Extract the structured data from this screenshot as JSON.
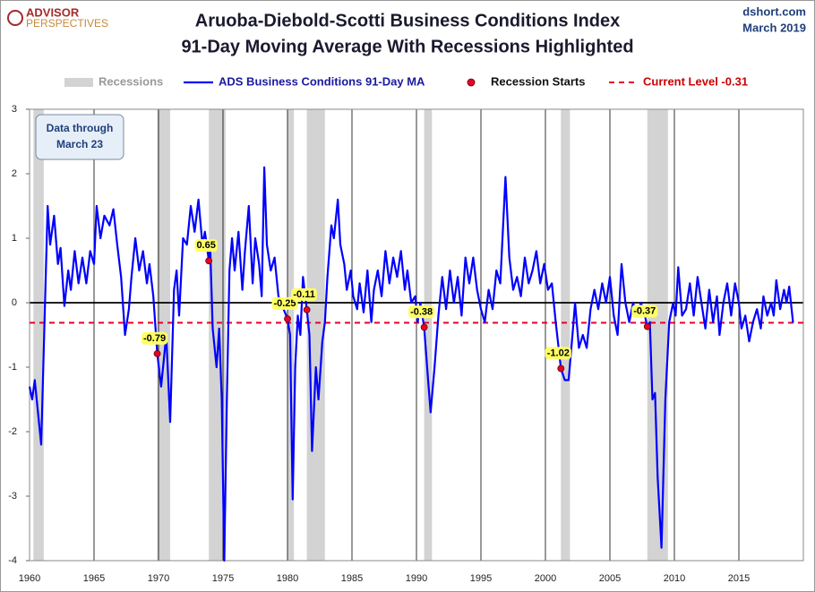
{
  "logo": {
    "top": "ADVISOR",
    "bottom": "PERSPECTIVES"
  },
  "source": {
    "site": "dshort.com",
    "date": "March 2019"
  },
  "chart_data": {
    "type": "line",
    "title": "Aruoba-Diebold-Scotti Business Conditions Index",
    "subtitle": "91-Day Moving Average With Recessions Highlighted",
    "annotation": {
      "line1": "Data through",
      "line2": "March 23"
    },
    "xlim": [
      1960,
      2020
    ],
    "xticks": [
      1960,
      1965,
      1970,
      1975,
      1980,
      1985,
      1990,
      1995,
      2000,
      2005,
      2010,
      2015
    ],
    "ylim": [
      -4,
      3
    ],
    "yticks": [
      -4,
      -3,
      -2,
      -1,
      0,
      1,
      2,
      3
    ],
    "grid": true,
    "recessions": {
      "name": "Recessions",
      "color": "#d3d3d3",
      "spans": [
        [
          1960.3,
          1961.1
        ],
        [
          1969.9,
          1970.9
        ],
        [
          1973.9,
          1975.2
        ],
        [
          1980.0,
          1980.5
        ],
        [
          1981.5,
          1982.9
        ],
        [
          1990.6,
          1991.2
        ],
        [
          2001.2,
          2001.9
        ],
        [
          2007.9,
          2009.5
        ]
      ]
    },
    "series": [
      {
        "name": "ADS Business Conditions 91-Day MA",
        "color": "#0000ff",
        "x": [
          1960.0,
          1960.2,
          1960.4,
          1960.9,
          1961.4,
          1961.6,
          1961.9,
          1962.2,
          1962.4,
          1962.7,
          1963.0,
          1963.2,
          1963.5,
          1963.8,
          1964.1,
          1964.4,
          1964.7,
          1965.0,
          1965.2,
          1965.5,
          1965.8,
          1966.2,
          1966.5,
          1966.8,
          1967.1,
          1967.4,
          1967.7,
          1967.9,
          1968.2,
          1968.5,
          1968.8,
          1969.1,
          1969.3,
          1969.6,
          1969.9,
          1970.2,
          1970.4,
          1970.6,
          1970.9,
          1971.2,
          1971.4,
          1971.6,
          1971.9,
          1972.2,
          1972.5,
          1972.8,
          1973.1,
          1973.4,
          1973.6,
          1973.9,
          1974.0,
          1974.2,
          1974.5,
          1974.7,
          1974.9,
          1975.1,
          1975.3,
          1975.5,
          1975.7,
          1975.9,
          1976.2,
          1976.5,
          1976.7,
          1977.0,
          1977.3,
          1977.5,
          1977.8,
          1978.0,
          1978.2,
          1978.4,
          1978.7,
          1979.0,
          1979.3,
          1979.6,
          1980.0,
          1980.2,
          1980.4,
          1980.6,
          1980.8,
          1981.0,
          1981.2,
          1981.5,
          1981.7,
          1981.9,
          1982.2,
          1982.4,
          1982.7,
          1982.9,
          1983.1,
          1983.4,
          1983.6,
          1983.9,
          1984.1,
          1984.4,
          1984.6,
          1984.9,
          1985.1,
          1985.4,
          1985.6,
          1985.9,
          1986.2,
          1986.5,
          1986.7,
          1987.0,
          1987.3,
          1987.6,
          1987.9,
          1988.2,
          1988.5,
          1988.8,
          1989.1,
          1989.3,
          1989.6,
          1989.9,
          1990.1,
          1990.3,
          1990.6,
          1990.9,
          1991.1,
          1991.4,
          1991.7,
          1992.0,
          1992.3,
          1992.6,
          1992.9,
          1993.2,
          1993.5,
          1993.8,
          1994.1,
          1994.4,
          1994.7,
          1995.0,
          1995.3,
          1995.6,
          1995.9,
          1996.2,
          1996.5,
          1996.9,
          1997.2,
          1997.5,
          1997.8,
          1998.1,
          1998.4,
          1998.7,
          1999.0,
          1999.3,
          1999.6,
          1999.9,
          2000.2,
          2000.5,
          2000.8,
          2001.2,
          2001.5,
          2001.8,
          2002.1,
          2002.3,
          2002.6,
          2002.9,
          2003.2,
          2003.5,
          2003.8,
          2004.1,
          2004.4,
          2004.7,
          2005.0,
          2005.3,
          2005.6,
          2005.9,
          2006.2,
          2006.5,
          2006.8,
          2007.1,
          2007.4,
          2007.6,
          2007.9,
          2008.1,
          2008.3,
          2008.5,
          2008.7,
          2009.0,
          2009.3,
          2009.6,
          2009.9,
          2010.1,
          2010.3,
          2010.6,
          2010.9,
          2011.2,
          2011.5,
          2011.8,
          2012.1,
          2012.4,
          2012.7,
          2013.0,
          2013.3,
          2013.5,
          2013.8,
          2014.1,
          2014.4,
          2014.7,
          2015.0,
          2015.2,
          2015.5,
          2015.8,
          2016.1,
          2016.4,
          2016.7,
          2016.9,
          2017.2,
          2017.5,
          2017.7,
          2017.9,
          2018.2,
          2018.5,
          2018.7,
          2018.9,
          2019.2
        ],
        "values": [
          -1.3,
          -1.5,
          -1.2,
          -2.2,
          1.5,
          0.9,
          1.35,
          0.6,
          0.85,
          -0.05,
          0.5,
          0.2,
          0.8,
          0.3,
          0.7,
          0.3,
          0.8,
          0.6,
          1.5,
          1.0,
          1.35,
          1.2,
          1.45,
          0.9,
          0.4,
          -0.5,
          -0.1,
          0.4,
          1.0,
          0.5,
          0.8,
          0.3,
          0.6,
          0.1,
          -0.79,
          -1.3,
          -0.9,
          -0.5,
          -1.85,
          0.2,
          0.5,
          -0.2,
          1.0,
          0.9,
          1.5,
          1.1,
          1.6,
          0.9,
          1.1,
          0.65,
          0.9,
          -0.4,
          -1.0,
          -0.4,
          -1.5,
          -4.0,
          -1.5,
          0.5,
          1.0,
          0.5,
          1.1,
          0.2,
          0.8,
          1.5,
          0.3,
          1.0,
          0.6,
          0.1,
          2.1,
          0.9,
          0.5,
          0.7,
          0.1,
          -0.05,
          -0.25,
          -0.5,
          -3.05,
          -1.0,
          -0.2,
          -0.5,
          0.4,
          -0.11,
          -0.5,
          -2.3,
          -1.0,
          -1.5,
          -0.6,
          -0.3,
          0.4,
          1.2,
          1.0,
          1.6,
          0.9,
          0.6,
          0.2,
          0.5,
          0.1,
          -0.1,
          0.3,
          -0.15,
          0.5,
          -0.3,
          0.2,
          0.5,
          0.1,
          0.8,
          0.3,
          0.7,
          0.4,
          0.8,
          0.2,
          0.5,
          0.0,
          0.1,
          -0.3,
          0.0,
          -0.38,
          -1.2,
          -1.7,
          -1.0,
          -0.2,
          0.4,
          -0.1,
          0.5,
          0.0,
          0.4,
          -0.2,
          0.7,
          0.3,
          0.7,
          0.2,
          -0.1,
          -0.3,
          0.2,
          -0.1,
          0.5,
          0.3,
          1.95,
          0.7,
          0.2,
          0.4,
          0.1,
          0.7,
          0.3,
          0.5,
          0.8,
          0.3,
          0.6,
          0.2,
          0.3,
          -0.3,
          -1.02,
          -1.2,
          -1.2,
          -0.5,
          0.0,
          -0.7,
          -0.5,
          -0.7,
          -0.1,
          0.2,
          -0.1,
          0.3,
          0.0,
          0.4,
          -0.2,
          -0.5,
          0.6,
          0.0,
          -0.3,
          0.0,
          -0.2,
          0.0,
          -0.1,
          -0.37,
          -0.3,
          -1.5,
          -1.4,
          -2.7,
          -3.8,
          -1.5,
          -0.3,
          0.0,
          -0.2,
          0.55,
          -0.2,
          -0.1,
          0.3,
          -0.2,
          0.4,
          0.0,
          -0.4,
          0.2,
          -0.3,
          0.1,
          -0.5,
          0.0,
          0.3,
          -0.2,
          0.3,
          0.0,
          -0.4,
          -0.2,
          -0.6,
          -0.3,
          -0.1,
          -0.4,
          0.1,
          -0.2,
          0.0,
          -0.2,
          0.35,
          -0.1,
          0.2,
          0.0,
          0.25,
          -0.31
        ]
      }
    ],
    "recession_starts": {
      "name": "Recession Starts",
      "color": "#e8002a",
      "x": [
        1969.9,
        1973.9,
        1980.0,
        1981.5,
        1990.6,
        2001.2,
        2007.9
      ],
      "values": [
        -0.79,
        0.65,
        -0.25,
        -0.11,
        -0.38,
        -1.02,
        -0.37
      ]
    },
    "reference_line": {
      "name": "Current Level -0.31",
      "value": -0.31,
      "color": "#e8002a"
    }
  }
}
